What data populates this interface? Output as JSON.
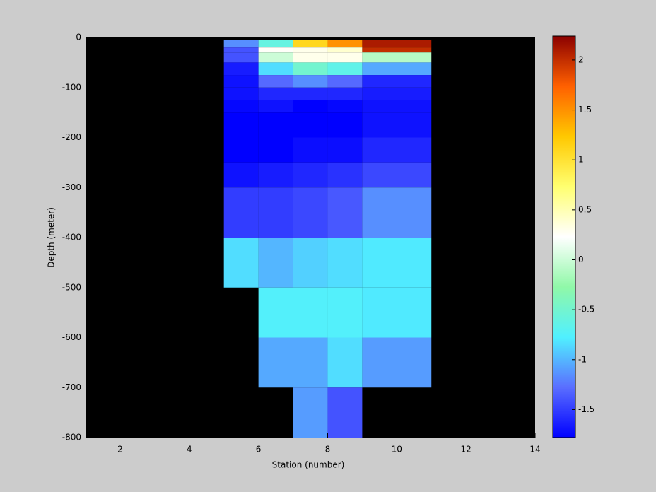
{
  "chart_data": {
    "type": "heatmap",
    "xlabel": "Station (number)",
    "ylabel": "Depth (meter)",
    "x": [
      5,
      6,
      7,
      8,
      9,
      10,
      11
    ],
    "y": [
      -5,
      -20,
      -30,
      -50,
      -75,
      -100,
      -125,
      -150,
      -200,
      -250,
      -300,
      -400,
      -500,
      -600,
      -700,
      -800
    ],
    "values": [
      [
        -1.15,
        -0.6,
        1.1,
        1.5,
        2.1,
        2.1
      ],
      [
        -1.4,
        0.25,
        0.3,
        0.4,
        2.0,
        2.0
      ],
      [
        -1.4,
        0.0,
        0.3,
        0.3,
        -0.1,
        -0.1
      ],
      [
        -1.65,
        -0.85,
        -0.5,
        -0.65,
        -1.05,
        -1.05
      ],
      [
        -1.7,
        -1.3,
        -1.15,
        -1.3,
        -1.6,
        -1.6
      ],
      [
        -1.7,
        -1.6,
        -1.6,
        -1.6,
        -1.65,
        -1.65
      ],
      [
        -1.75,
        -1.7,
        -1.78,
        -1.75,
        -1.7,
        -1.7
      ],
      [
        -1.78,
        -1.78,
        -1.78,
        -1.78,
        -1.7,
        -1.7
      ],
      [
        -1.78,
        -1.78,
        -1.72,
        -1.72,
        -1.6,
        -1.6
      ],
      [
        -1.7,
        -1.65,
        -1.6,
        -1.55,
        -1.45,
        -1.45
      ],
      [
        -1.5,
        -1.5,
        -1.45,
        -1.38,
        -1.15,
        -1.15
      ],
      [
        -0.85,
        -1.0,
        -0.9,
        -0.85,
        -0.8,
        -0.8
      ],
      [
        null,
        -0.75,
        -0.75,
        -0.75,
        -0.8,
        -0.8
      ],
      [
        null,
        -1.05,
        -1.05,
        -0.85,
        -1.1,
        -1.1
      ],
      [
        null,
        null,
        -1.1,
        -1.4,
        null,
        null
      ]
    ],
    "xlim": [
      1,
      14
    ],
    "xticks": [
      2,
      4,
      6,
      8,
      10,
      12,
      14
    ],
    "ylim": [
      -800,
      0
    ],
    "yticks": [
      0,
      -100,
      -200,
      -300,
      -400,
      -500,
      -600,
      -700,
      -800
    ],
    "clim": [
      -1.78,
      2.24
    ],
    "cticks": [
      -1.5,
      -1,
      -0.5,
      0,
      0.5,
      1,
      1.5,
      2
    ],
    "colormap": [
      "#0000ff",
      "#5a6eff",
      "#50f0ff",
      "#90f8a8",
      "#ffffff",
      "#ffff70",
      "#ffc800",
      "#ff6000",
      "#8b0000"
    ],
    "background": "#000000"
  }
}
